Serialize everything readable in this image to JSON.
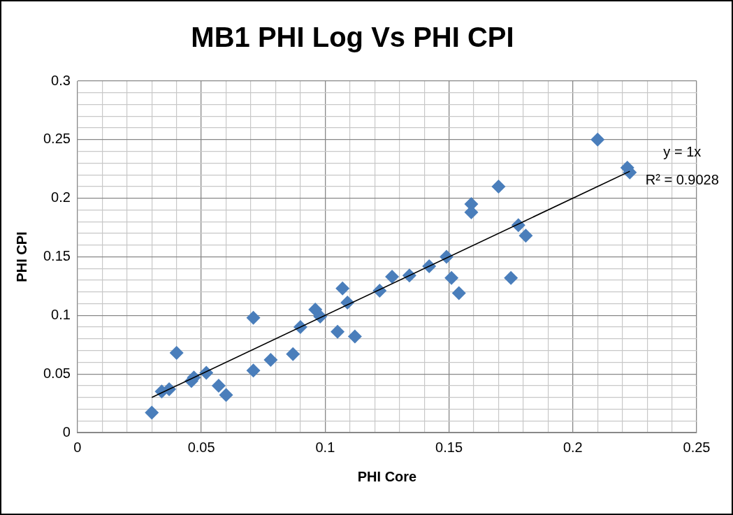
{
  "chart_data": {
    "type": "scatter",
    "title": "MB1 PHI Log Vs PHI CPI",
    "xlabel": "PHI Core",
    "ylabel": "PHI CPI",
    "series": [
      {
        "marker": "diamond",
        "color": "#4a7ebb",
        "x": [
          0.03,
          0.034,
          0.037,
          0.04,
          0.046,
          0.047,
          0.052,
          0.057,
          0.06,
          0.071,
          0.071,
          0.078,
          0.087,
          0.09,
          0.096,
          0.098,
          0.105,
          0.107,
          0.109,
          0.112,
          0.122,
          0.127,
          0.134,
          0.142,
          0.149,
          0.151,
          0.154,
          0.159,
          0.159,
          0.17,
          0.175,
          0.178,
          0.181,
          0.21,
          0.222,
          0.223
        ],
        "values": [
          0.017,
          0.035,
          0.037,
          0.068,
          0.044,
          0.047,
          0.051,
          0.04,
          0.032,
          0.098,
          0.053,
          0.062,
          0.067,
          0.09,
          0.105,
          0.099,
          0.086,
          0.123,
          0.111,
          0.082,
          0.121,
          0.133,
          0.134,
          0.142,
          0.15,
          0.132,
          0.119,
          0.195,
          0.188,
          0.21,
          0.132,
          0.177,
          0.168,
          0.25,
          0.226,
          0.222
        ]
      },
      {
        "type": "line",
        "marker": "none",
        "color": "#000000",
        "x": [
          0.03,
          0.223
        ],
        "values": [
          0.03,
          0.223
        ]
      }
    ],
    "annotations": [
      "y = 1x",
      "R² = 0.9028"
    ],
    "grid": true,
    "legend": false,
    "xlim": [
      0,
      0.25
    ],
    "ylim": [
      0,
      0.3
    ],
    "xticks": [
      0,
      {
        "value": 0.01,
        "label": null
      },
      {
        "value": 0.02,
        "label": null
      },
      {
        "value": 0.03,
        "label": null
      },
      {
        "value": 0.04,
        "label": null
      },
      0.05,
      {
        "value": 0.06,
        "label": null
      },
      {
        "value": 0.07,
        "label": null
      },
      {
        "value": 0.08,
        "label": null
      },
      {
        "value": 0.09,
        "label": null
      },
      0.1,
      {
        "value": 0.11,
        "label": null
      },
      {
        "value": 0.12,
        "label": null
      },
      {
        "value": 0.13,
        "label": null
      },
      {
        "value": 0.14,
        "label": null
      },
      0.15,
      {
        "value": 0.16,
        "label": null
      },
      {
        "value": 0.17,
        "label": null
      },
      {
        "value": 0.18,
        "label": null
      },
      {
        "value": 0.19,
        "label": null
      },
      0.2,
      {
        "value": 0.21,
        "label": null
      },
      {
        "value": 0.22,
        "label": null
      },
      {
        "value": 0.23,
        "label": null
      },
      {
        "value": 0.24,
        "label": null
      },
      0.25
    ],
    "yticks": [
      0,
      {
        "value": 0.01,
        "label": null
      },
      {
        "value": 0.02,
        "label": null
      },
      {
        "value": 0.03,
        "label": null
      },
      {
        "value": 0.04,
        "label": null
      },
      0.05,
      {
        "value": 0.06,
        "label": null
      },
      {
        "value": 0.07,
        "label": null
      },
      {
        "value": 0.08,
        "label": null
      },
      {
        "value": 0.09,
        "label": null
      },
      0.1,
      {
        "value": 0.11,
        "label": null
      },
      {
        "value": 0.12,
        "label": null
      },
      {
        "value": 0.13,
        "label": null
      },
      {
        "value": 0.14,
        "label": null
      },
      0.15,
      {
        "value": 0.16,
        "label": null
      },
      {
        "value": 0.17,
        "label": null
      },
      {
        "value": 0.18,
        "label": null
      },
      {
        "value": 0.19,
        "label": null
      },
      0.2,
      {
        "value": 0.21,
        "label": null
      },
      {
        "value": 0.22,
        "label": null
      },
      {
        "value": 0.23,
        "label": null
      },
      {
        "value": 0.24,
        "label": null
      },
      0.25,
      {
        "value": 0.26,
        "label": null
      },
      {
        "value": 0.27,
        "label": null
      },
      {
        "value": 0.28,
        "label": null
      },
      {
        "value": 0.29,
        "label": null
      },
      0.3
    ]
  }
}
